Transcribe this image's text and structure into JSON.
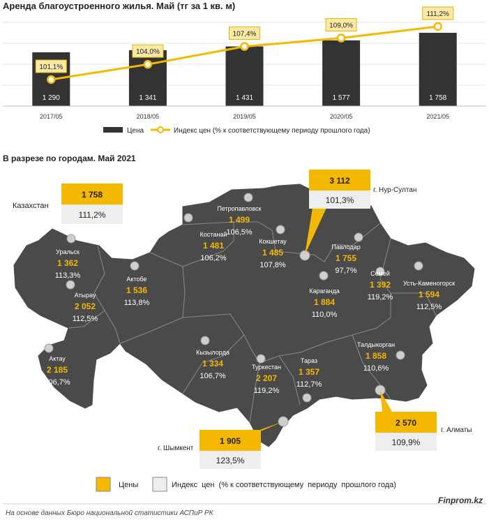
{
  "title": "Аренда благоустроенного жилья. Май (тг за 1 кв. м)",
  "subtitle": "В разрезе по городам. Май 2021",
  "chart_data": {
    "type": "bar",
    "categories": [
      "2017/05",
      "2018/05",
      "2019/05",
      "2020/05",
      "2021/05"
    ],
    "series": [
      {
        "name": "Цена",
        "type": "bar",
        "values": [
          1290,
          1341,
          1431,
          1577,
          1758
        ],
        "labels": [
          "1 290",
          "1 341",
          "1 431",
          "1 577",
          "1 758"
        ],
        "color": "#333333"
      },
      {
        "name": "Индекс цен (% к соответствующему периоду прошлого года)",
        "type": "line",
        "values": [
          101.1,
          104.0,
          107.4,
          109.0,
          111.2
        ],
        "labels": [
          "101,1%",
          "104,0%",
          "107,4%",
          "109,0%",
          "111,2%"
        ],
        "color": "#f5b800"
      }
    ],
    "grid": true,
    "legend_position": "bottom"
  },
  "map": {
    "fill_color": "#4a4a4a",
    "border_color": "#888888",
    "price_color": "#f5b800",
    "index_color": "#ffffff",
    "kazakhstan": {
      "name": "Казахстан",
      "price": "1 758",
      "index": "111,2%"
    },
    "cities": [
      {
        "name": "Уральск",
        "price": "1 362",
        "index": "113,3%"
      },
      {
        "name": "Атырау",
        "price": "2 052",
        "index": "112,5%"
      },
      {
        "name": "Актау",
        "price": "2 185",
        "index": "106,7%"
      },
      {
        "name": "Актобе",
        "price": "1 536",
        "index": "113,8%"
      },
      {
        "name": "Костанай",
        "price": "1 481",
        "index": "106,2%"
      },
      {
        "name": "Петропавловск",
        "price": "1 499",
        "index": "106,5%"
      },
      {
        "name": "Кокшетау",
        "price": "1 485",
        "index": "107,8%"
      },
      {
        "name": "Павлодар",
        "price": "1 755",
        "index": "97,7%"
      },
      {
        "name": "Караганда",
        "price": "1 884",
        "index": "110,0%"
      },
      {
        "name": "Семей",
        "price": "1 392",
        "index": "119,2%"
      },
      {
        "name": "Усть-Каменогорск",
        "price": "1 594",
        "index": "112,5%"
      },
      {
        "name": "Кызылорда",
        "price": "1 334",
        "index": "106,7%"
      },
      {
        "name": "Туркестан",
        "price": "2 207",
        "index": "119,2%"
      },
      {
        "name": "Тараз",
        "price": "1 357",
        "index": "112,7%"
      },
      {
        "name": "Талдыкорган",
        "price": "1 858",
        "index": "110,6%"
      }
    ],
    "callouts": {
      "nursultan": {
        "name": "г. Нур-Султан",
        "price": "3 112",
        "index": "101,3%"
      },
      "almaty": {
        "name": "г. Алматы",
        "price": "2 570",
        "index": "109,9%"
      },
      "shymkent": {
        "name": "г. Шымкент",
        "price": "1 905",
        "index": "123,5%"
      }
    }
  },
  "legend2": {
    "prices_label": "Цены",
    "index_label": "Индекс  цен  (% к соответствующему  периоду  прошлого года)"
  },
  "footer": {
    "source": "На основе данных Бюро национальной статистики АСПиР РК",
    "brand": "Finprom.kz"
  }
}
